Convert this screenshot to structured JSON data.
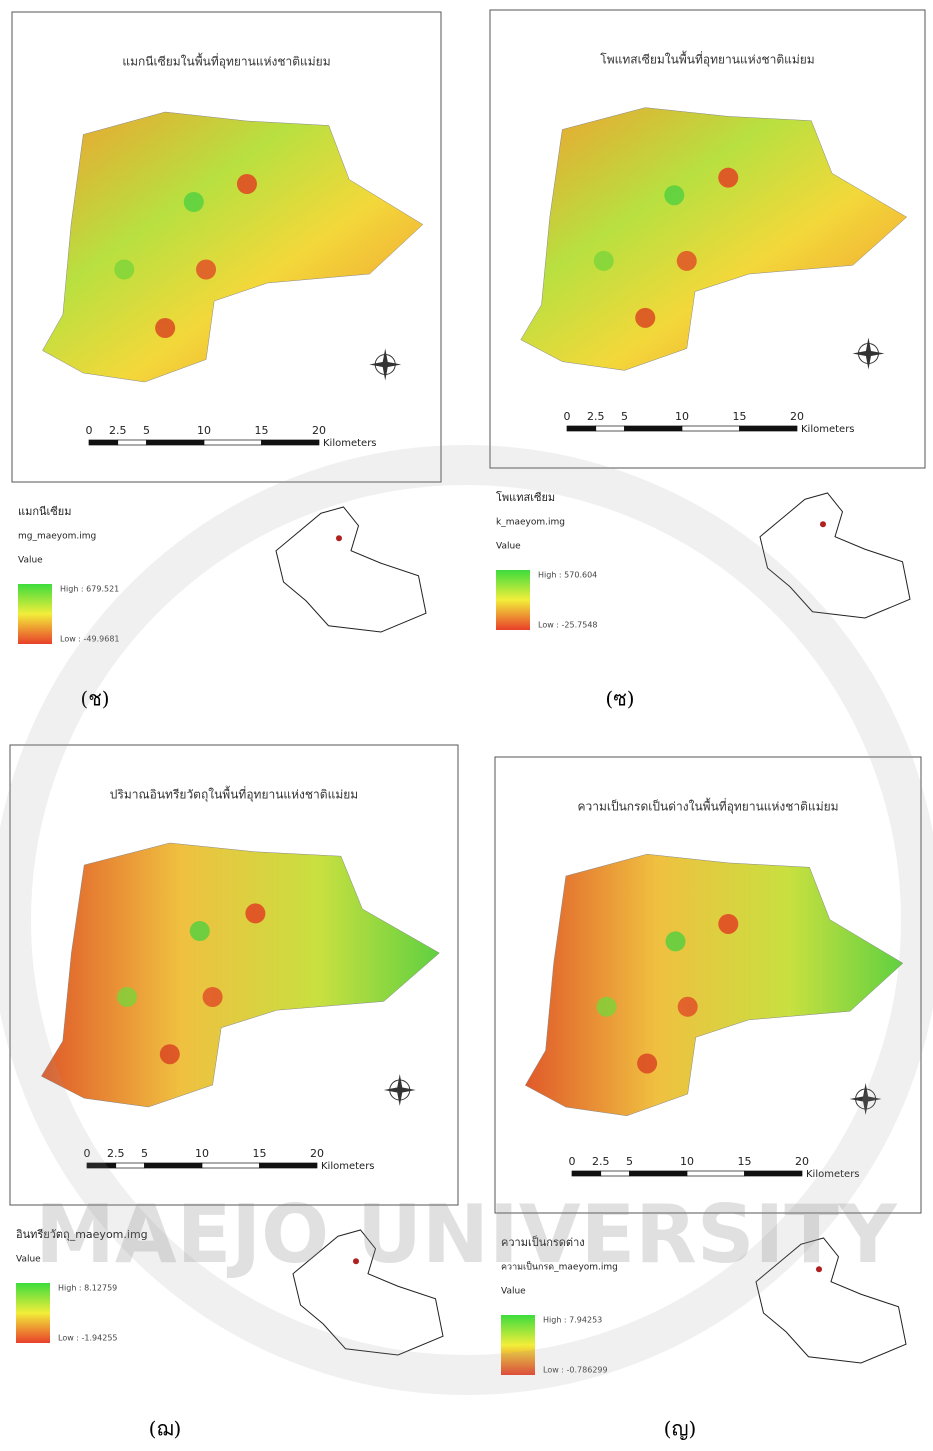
{
  "panels": [
    {
      "title": "แมกนีเซียมในพื้นที่อุทยานแห่งชาติแม่ยม",
      "scale": [
        "0",
        "2.5",
        "5",
        "10",
        "15",
        "20"
      ],
      "unit": "Kilometers",
      "legend": [
        "แมกนีเซียม",
        "mg_maeyom.img",
        "Value"
      ],
      "high": "High : 679.521",
      "low": "Low : -49.9681",
      "caption": "(ช)"
    },
    {
      "title": "โพแทสเซียมในพื้นที่อุทยานแห่งชาติแม่ยม",
      "scale": [
        "0",
        "2.5",
        "5",
        "10",
        "15",
        "20"
      ],
      "unit": "Kilometers",
      "legend": [
        "โพแทสเซียม",
        "k_maeyom.img",
        "Value"
      ],
      "high": "High : 570.604",
      "low": "Low : -25.7548",
      "caption": "(ซ)"
    },
    {
      "title": "ปริมาณอินทรียวัตถุในพื้นที่อุทยานแห่งชาติแม่ยม",
      "scale": [
        "0",
        "2.5",
        "5",
        "10",
        "15",
        "20"
      ],
      "unit": "Kilometers",
      "legend": [
        "อินทรียวัตถุ_maeyom.img",
        "Value"
      ],
      "high": "High : 8.12759",
      "low": "Low : -1.94255",
      "caption": "(ฌ)"
    },
    {
      "title": "ความเป็นกรดเป็นด่างในพื้นที่อุทยานแห่งชาติแม่ยม",
      "scale": [
        "0",
        "2.5",
        "5",
        "10",
        "15",
        "20"
      ],
      "unit": "Kilometers",
      "legend": [
        "ความเป็นกรดต่าง",
        "ความเป็นกรด_maeyom.img",
        "Value"
      ],
      "high": "High : 7.94253",
      "low": "Low : -0.786299",
      "caption": "(ญ)"
    }
  ],
  "watermark": "MAEJO UNIVERSITY"
}
